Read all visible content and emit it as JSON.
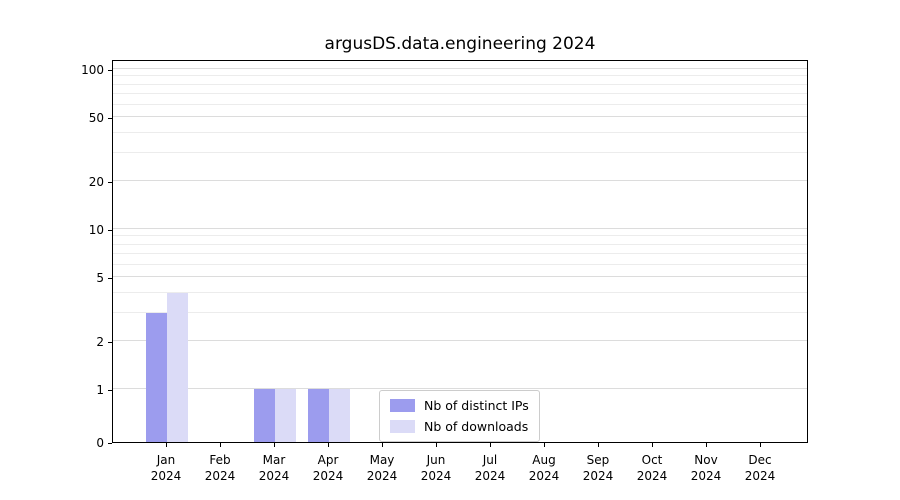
{
  "title": "argusDS.data.engineering 2024",
  "colors": {
    "distinct_ips": "#9c9cee",
    "downloads": "#dbdbf7",
    "grid_major": "#dcdcdc",
    "grid_minor": "#ececec",
    "axis": "#000000",
    "legend_border": "#cccccc",
    "background": "#ffffff"
  },
  "chart_data": {
    "type": "bar",
    "title": "argusDS.data.engineering 2024",
    "categories": [
      "Jan 2024",
      "Feb 2024",
      "Mar 2024",
      "Apr 2024",
      "May 2024",
      "Jun 2024",
      "Jul 2024",
      "Aug 2024",
      "Sep 2024",
      "Oct 2024",
      "Nov 2024",
      "Dec 2024"
    ],
    "series": [
      {
        "name": "Nb of distinct IPs",
        "color": "#9c9cee",
        "values": [
          3,
          0,
          1,
          1,
          0,
          0,
          0,
          0,
          0,
          0,
          0,
          0
        ]
      },
      {
        "name": "Nb of downloads",
        "color": "#dbdbf7",
        "values": [
          4,
          0,
          1,
          1,
          0,
          0,
          0,
          0,
          0,
          0,
          0,
          0
        ]
      }
    ],
    "xlabel": "",
    "ylabel": "",
    "yscale": "symlog",
    "yticks": [
      0,
      1,
      2,
      5,
      10,
      20,
      50,
      100
    ],
    "ylim": [
      0,
      117
    ],
    "grid": true,
    "legend_position": "lower center"
  },
  "legend": {
    "items": [
      {
        "label": "Nb of distinct IPs",
        "color": "#9c9cee"
      },
      {
        "label": "Nb of downloads",
        "color": "#dbdbf7"
      }
    ]
  }
}
